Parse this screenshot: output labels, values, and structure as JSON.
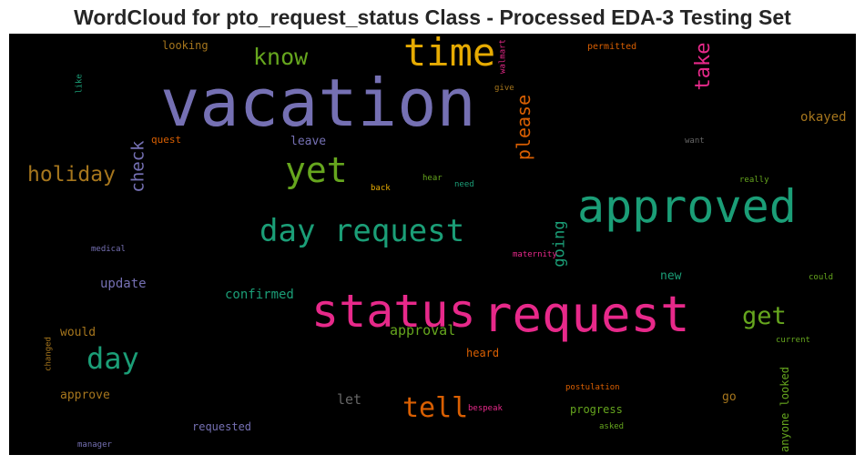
{
  "chart_data": {
    "type": "wordcloud",
    "title": "WordCloud for pto_request_status Class - Processed EDA-3 Testing Set",
    "background": "#000000",
    "colormap": "Dark2",
    "words": [
      {
        "text": "vacation",
        "color": "#7570b3",
        "orientation": "horizontal"
      },
      {
        "text": "time",
        "color": "#e6ab02",
        "orientation": "horizontal"
      },
      {
        "text": "know",
        "color": "#66a61e",
        "orientation": "horizontal"
      },
      {
        "text": "approved",
        "color": "#1b9e77",
        "orientation": "horizontal"
      },
      {
        "text": "request",
        "color": "#e7298a",
        "orientation": "horizontal"
      },
      {
        "text": "status",
        "color": "#e7298a",
        "orientation": "horizontal"
      },
      {
        "text": "day request",
        "color": "#1b9e77",
        "orientation": "horizontal"
      },
      {
        "text": "yet",
        "color": "#66a61e",
        "orientation": "horizontal"
      },
      {
        "text": "holiday",
        "color": "#a6761d",
        "orientation": "horizontal"
      },
      {
        "text": "day",
        "color": "#1b9e77",
        "orientation": "horizontal"
      },
      {
        "text": "tell",
        "color": "#d95f02",
        "orientation": "horizontal"
      },
      {
        "text": "get",
        "color": "#66a61e",
        "orientation": "horizontal"
      },
      {
        "text": "take",
        "color": "#e7298a",
        "orientation": "vertical"
      },
      {
        "text": "please",
        "color": "#d95f02",
        "orientation": "vertical"
      },
      {
        "text": "check",
        "color": "#7570b3",
        "orientation": "vertical"
      },
      {
        "text": "going",
        "color": "#1b9e77",
        "orientation": "vertical"
      },
      {
        "text": "okayed",
        "color": "#a6761d",
        "orientation": "horizontal"
      },
      {
        "text": "confirmed",
        "color": "#1b9e77",
        "orientation": "horizontal"
      },
      {
        "text": "update",
        "color": "#7570b3",
        "orientation": "horizontal"
      },
      {
        "text": "approval",
        "color": "#66a61e",
        "orientation": "horizontal"
      },
      {
        "text": "leave",
        "color": "#7570b3",
        "orientation": "horizontal"
      },
      {
        "text": "looking",
        "color": "#a6761d",
        "orientation": "horizontal"
      },
      {
        "text": "would",
        "color": "#a6761d",
        "orientation": "horizontal"
      },
      {
        "text": "approve",
        "color": "#a6761d",
        "orientation": "horizontal"
      },
      {
        "text": "let",
        "color": "#666666",
        "orientation": "horizontal"
      },
      {
        "text": "new",
        "color": "#1b9e77",
        "orientation": "horizontal"
      },
      {
        "text": "go",
        "color": "#a6761d",
        "orientation": "horizontal"
      },
      {
        "text": "heard",
        "color": "#d95f02",
        "orientation": "horizontal"
      },
      {
        "text": "progress",
        "color": "#66a61e",
        "orientation": "horizontal"
      },
      {
        "text": "requested",
        "color": "#7570b3",
        "orientation": "horizontal"
      },
      {
        "text": "quest",
        "color": "#d95f02",
        "orientation": "horizontal"
      },
      {
        "text": "anyone looked",
        "color": "#66a61e",
        "orientation": "vertical"
      },
      {
        "text": "permitted",
        "color": "#d95f02",
        "orientation": "horizontal"
      },
      {
        "text": "walmart",
        "color": "#e7298a",
        "orientation": "vertical"
      },
      {
        "text": "give",
        "color": "#a6761d",
        "orientation": "horizontal"
      },
      {
        "text": "like",
        "color": "#1b9e77",
        "orientation": "vertical"
      },
      {
        "text": "want",
        "color": "#666666",
        "orientation": "horizontal"
      },
      {
        "text": "hear",
        "color": "#66a61e",
        "orientation": "horizontal"
      },
      {
        "text": "need",
        "color": "#1b9e77",
        "orientation": "horizontal"
      },
      {
        "text": "back",
        "color": "#e6ab02",
        "orientation": "horizontal"
      },
      {
        "text": "really",
        "color": "#66a61e",
        "orientation": "horizontal"
      },
      {
        "text": "medical",
        "color": "#7570b3",
        "orientation": "horizontal"
      },
      {
        "text": "maternity",
        "color": "#e7298a",
        "orientation": "horizontal"
      },
      {
        "text": "could",
        "color": "#66a61e",
        "orientation": "horizontal"
      },
      {
        "text": "current",
        "color": "#66a61e",
        "orientation": "horizontal"
      },
      {
        "text": "changed",
        "color": "#a6761d",
        "orientation": "vertical"
      },
      {
        "text": "postulation",
        "color": "#d95f02",
        "orientation": "horizontal"
      },
      {
        "text": "bespeak",
        "color": "#e7298a",
        "orientation": "horizontal"
      },
      {
        "text": "asked",
        "color": "#66a61e",
        "orientation": "horizontal"
      },
      {
        "text": "manager",
        "color": "#7570b3",
        "orientation": "horizontal"
      }
    ]
  }
}
